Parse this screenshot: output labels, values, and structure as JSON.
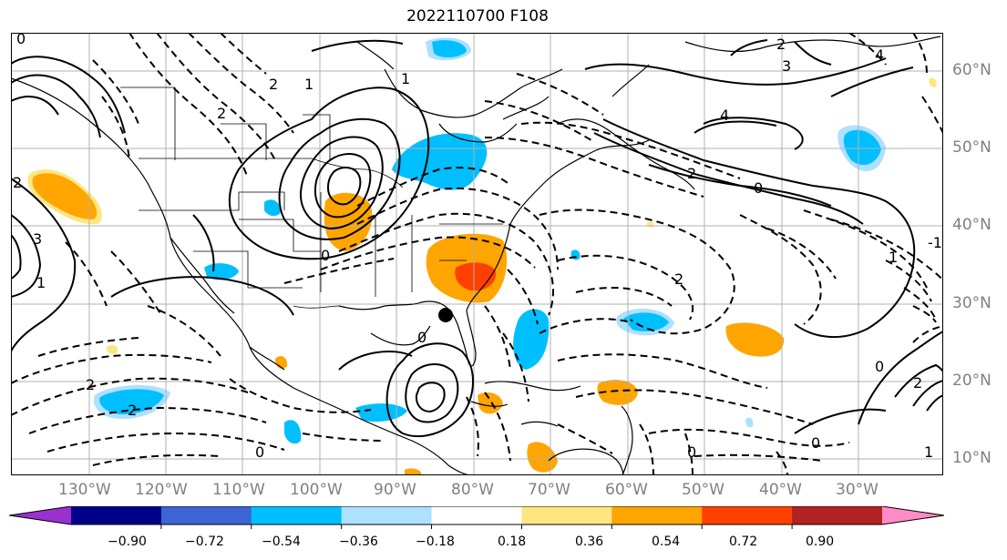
{
  "title": "2022110700 F108",
  "lon_labels": [
    "130°W",
    "120°W",
    "110°W",
    "100°W",
    "90°W",
    "80°W",
    "70°W",
    "60°W",
    "50°W",
    "40°W",
    "30°W"
  ],
  "lat_labels": [
    "60°N",
    "50°N",
    "40°N",
    "30°N",
    "20°N",
    "10°N"
  ],
  "colorbar": {
    "ticks": [
      "−0.90",
      "−0.72",
      "−0.54",
      "−0.36",
      "−0.18",
      "0.18",
      "0.36",
      "0.54",
      "0.72",
      "0.90"
    ],
    "colors": [
      "#9b30d0",
      "#00008b",
      "#3c64d2",
      "#00bfff",
      "#aee0ff",
      "#ffffff",
      "#ffe680",
      "#ffa500",
      "#ff4000",
      "#b22222",
      "#ff8cc6"
    ]
  },
  "contour_labels": [
    "0",
    "1",
    "2",
    "2",
    "3",
    "4",
    "4",
    "0",
    "1",
    "2",
    "2",
    "0",
    "2",
    "-1",
    "1",
    "0",
    "0",
    "0",
    "1",
    "2",
    "1",
    "0",
    "2",
    "2",
    "0",
    "3",
    "2"
  ],
  "colors": {
    "gridline": "#b0b0b0",
    "axis_label": "#808080",
    "coast": "#000000"
  }
}
